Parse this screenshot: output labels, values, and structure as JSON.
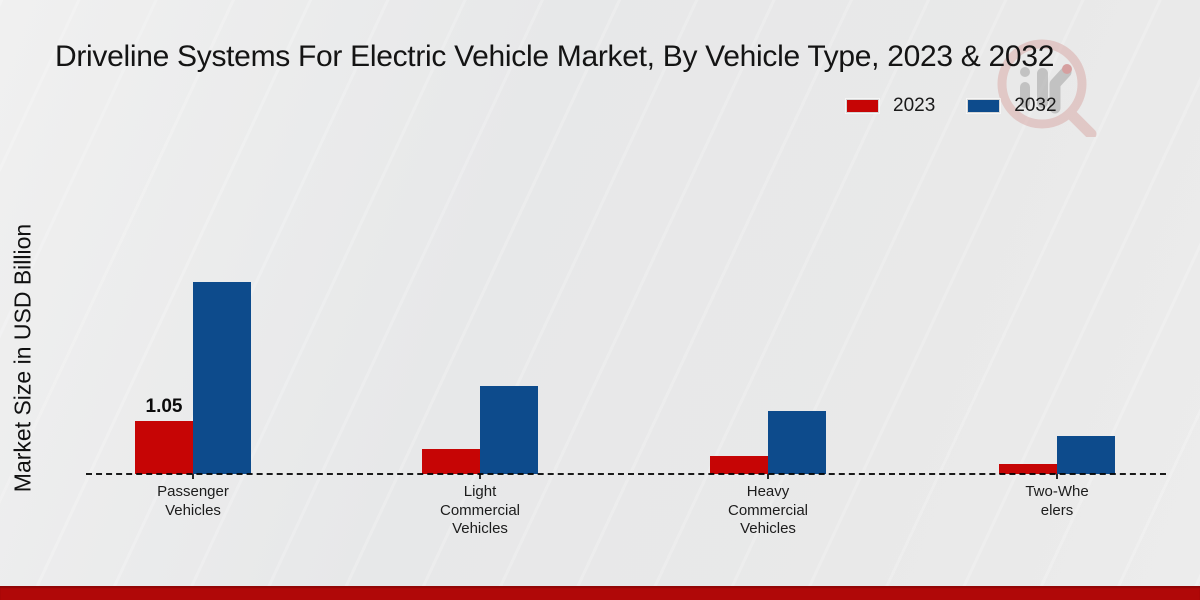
{
  "title": "Driveline Systems For Electric Vehicle Market, By Vehicle Type, 2023 & 2032",
  "ylabel": "Market Size in USD Billion",
  "legend": {
    "position": "upper right",
    "items": [
      {
        "label": "2023",
        "color": "#c60505"
      },
      {
        "label": "2032",
        "color": "#0d4b8c"
      }
    ]
  },
  "icons": {
    "watermark": "magnifier-bar-chart-logo"
  },
  "colors": {
    "bar_2023": "#c60505",
    "bar_2032": "#0d4b8c",
    "footer_accent": "#b00808",
    "axis_line": "#1c1c1c",
    "background": "#e9e9e9"
  },
  "chart_data": {
    "type": "bar",
    "title": "Driveline Systems For Electric Vehicle Market, By Vehicle Type, 2023 & 2032",
    "xlabel": "",
    "ylabel": "Market Size in USD Billion",
    "categories": [
      "Passenger Vehicles",
      "Light Commercial Vehicles",
      "Heavy Commercial Vehicles",
      "Two-Wheelers"
    ],
    "category_display_lines": [
      [
        "Passenger",
        "Vehicles"
      ],
      [
        "Light",
        "Commercial",
        "Vehicles"
      ],
      [
        "Heavy",
        "Commercial",
        "Vehicles"
      ],
      [
        "Two-Whe",
        "elers"
      ]
    ],
    "series": [
      {
        "name": "2023",
        "color": "#c60505",
        "values": [
          1.05,
          0.5,
          0.35,
          0.2
        ]
      },
      {
        "name": "2032",
        "color": "#0d4b8c",
        "values": [
          3.82,
          1.76,
          1.26,
          0.76
        ]
      }
    ],
    "annotations": [
      {
        "text": "1.05",
        "series": "2023",
        "category_index": 0
      }
    ],
    "ylim": [
      0,
      4.2
    ],
    "grid": false,
    "baseline_style": "dashed",
    "legend_position": "upper right"
  }
}
